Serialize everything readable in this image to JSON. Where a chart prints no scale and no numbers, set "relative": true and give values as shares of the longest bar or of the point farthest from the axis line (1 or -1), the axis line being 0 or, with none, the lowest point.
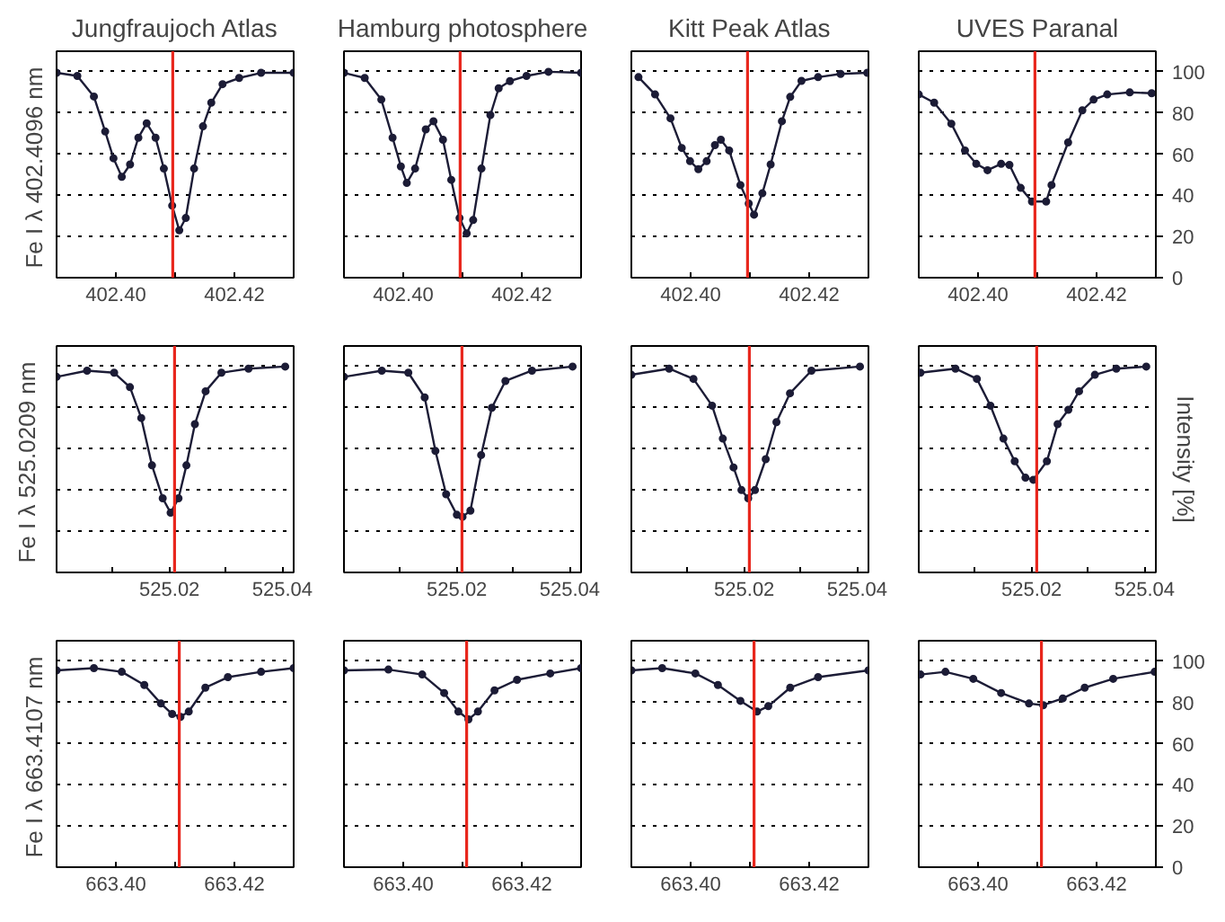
{
  "chart_data": [
    {
      "type": "line",
      "title": "Jungfraujoch Atlas",
      "ylabel": "Fe I  λ 402.4096 nm",
      "marker": "circle",
      "grid": "y",
      "tick_labels": "x",
      "xlim": [
        402.39,
        402.43
      ],
      "ylim": [
        0,
        110
      ],
      "xticks": [
        {
          "value": 402.39,
          "label": null
        },
        {
          "value": 402.4,
          "label": "402.40"
        },
        {
          "value": 402.41,
          "label": null
        },
        {
          "value": 402.42,
          "label": "402.42"
        },
        {
          "value": 402.43,
          "label": null
        }
      ],
      "yticks": [
        0,
        20,
        40,
        60,
        80,
        100
      ],
      "ref_lines": [
        {
          "axis": "x",
          "value": 402.4096,
          "color": "#e8261c"
        }
      ],
      "series": [
        {
          "color": "#1c1c36",
          "x": [
            402.39,
            402.3935,
            402.3963,
            402.3982,
            402.3996,
            402.401,
            402.4024,
            402.4038,
            402.4052,
            402.4067,
            402.4081,
            402.4095,
            402.4107,
            402.4118,
            402.4132,
            402.4147,
            402.4161,
            402.418,
            402.4208,
            402.4245,
            402.43
          ],
          "values": [
            99.5,
            98,
            88,
            71,
            58,
            49,
            55,
            68,
            75,
            68,
            53,
            35,
            23,
            29,
            53,
            73.5,
            85,
            94,
            97,
            99.5,
            99.5
          ]
        }
      ]
    },
    {
      "type": "line",
      "title": "Hamburg photosphere",
      "marker": "circle",
      "grid": "y",
      "tick_labels": "x",
      "xlim": [
        402.39,
        402.43
      ],
      "ylim": [
        0,
        110
      ],
      "xticks": [
        {
          "value": 402.39,
          "label": null
        },
        {
          "value": 402.4,
          "label": "402.40"
        },
        {
          "value": 402.41,
          "label": null
        },
        {
          "value": 402.42,
          "label": "402.42"
        },
        {
          "value": 402.43,
          "label": null
        }
      ],
      "yticks": [
        0,
        20,
        40,
        60,
        80,
        100
      ],
      "ref_lines": [
        {
          "axis": "x",
          "value": 402.4096,
          "color": "#e8261c"
        }
      ],
      "series": [
        {
          "color": "#1c1c36",
          "x": [
            402.39,
            402.3935,
            402.3963,
            402.3982,
            402.3996,
            402.4006,
            402.402,
            402.4038,
            402.4051,
            402.4067,
            402.4081,
            402.4095,
            402.4107,
            402.4118,
            402.4132,
            402.4147,
            402.4161,
            402.418,
            402.4208,
            402.4245,
            402.43
          ],
          "values": [
            99.5,
            97,
            86.5,
            68,
            54,
            46,
            53,
            72,
            76,
            67,
            47.5,
            29,
            21.5,
            28,
            53,
            79,
            92,
            95.5,
            98,
            100,
            99.5
          ]
        }
      ]
    },
    {
      "type": "line",
      "title": "Kitt Peak Atlas",
      "marker": "circle",
      "grid": "y",
      "tick_labels": "x",
      "xlim": [
        402.39,
        402.43
      ],
      "ylim": [
        0,
        110
      ],
      "xticks": [
        {
          "value": 402.39,
          "label": null
        },
        {
          "value": 402.4,
          "label": "402.40"
        },
        {
          "value": 402.41,
          "label": null
        },
        {
          "value": 402.42,
          "label": "402.42"
        },
        {
          "value": 402.43,
          "label": null
        }
      ],
      "yticks": [
        0,
        20,
        40,
        60,
        80,
        100
      ],
      "ref_lines": [
        {
          "axis": "x",
          "value": 402.4096,
          "color": "#e8261c"
        }
      ],
      "series": [
        {
          "color": "#1c1c36",
          "x": [
            402.3912,
            402.394,
            402.3966,
            402.3985,
            402.3999,
            402.4013,
            402.4027,
            402.4041,
            402.4051,
            402.4065,
            402.4084,
            402.4098,
            402.4107,
            402.4121,
            402.4135,
            402.4154,
            402.4168,
            402.4187,
            402.4215,
            402.4253,
            402.4298
          ],
          "values": [
            97.4,
            89,
            77.4,
            63,
            56.6,
            52.7,
            56.6,
            64.4,
            67,
            61.8,
            45,
            36,
            30.6,
            41,
            55,
            76,
            87.8,
            95.6,
            97.4,
            99,
            99.5
          ]
        }
      ]
    },
    {
      "type": "line",
      "title": "UVES Paranal",
      "marker": "circle",
      "grid": "y",
      "xlim": [
        402.39,
        402.43
      ],
      "ylim": [
        0,
        110
      ],
      "xticks": [
        {
          "value": 402.39,
          "label": null
        },
        {
          "value": 402.4,
          "label": "402.40"
        },
        {
          "value": 402.41,
          "label": null
        },
        {
          "value": 402.42,
          "label": "402.42"
        },
        {
          "value": 402.43,
          "label": null
        }
      ],
      "yticks": [
        0,
        20,
        40,
        60,
        80,
        100
      ],
      "ref_lines": [
        {
          "axis": "x",
          "value": 402.4096,
          "color": "#e8261c"
        }
      ],
      "series": [
        {
          "color": "#1c1c36",
          "x": [
            402.39,
            402.3926,
            402.3955,
            402.3978,
            402.3997,
            402.4016,
            402.4039,
            402.4053,
            402.4072,
            402.4091,
            402.4115,
            402.4124,
            402.4152,
            402.4176,
            402.4195,
            402.4218,
            402.4256,
            402.4293
          ],
          "values": [
            89,
            85,
            74.8,
            61.8,
            55.3,
            52.2,
            55.3,
            54.8,
            43.6,
            37,
            37,
            45,
            65.7,
            81.3,
            86.5,
            89,
            90,
            89.6
          ]
        }
      ]
    },
    {
      "type": "line",
      "relative": true,
      "ylabel": "Fe I  λ 525.0209 nm",
      "marker": "circle",
      "grid": "y",
      "tick_labels": "x",
      "xlim": [
        525.0,
        525.042
      ],
      "xticks": [
        {
          "value": 525.01,
          "label": null
        },
        {
          "value": 525.02,
          "label": "525.02"
        },
        {
          "value": 525.03,
          "label": null
        },
        {
          "value": 525.04,
          "label": "525.04"
        }
      ],
      "ref_lines": [
        {
          "axis": "x",
          "value": 525.0209,
          "color": "#e8261c"
        }
      ],
      "series": [
        {
          "color": "#1c1c36",
          "x": [
            525.0,
            525.0054,
            525.0102,
            525.013,
            525.015,
            525.0169,
            525.0188,
            525.0202,
            525.0216,
            525.023,
            525.0245,
            525.0264,
            525.0292,
            525.034,
            525.0405
          ],
          "values": [
            0.95,
            0.98,
            0.97,
            0.9,
            0.75,
            0.52,
            0.36,
            0.29,
            0.36,
            0.52,
            0.72,
            0.88,
            0.97,
            0.99,
            1
          ]
        }
      ]
    },
    {
      "type": "line",
      "relative": true,
      "marker": "circle",
      "grid": "y",
      "tick_labels": "x",
      "xlim": [
        525.0,
        525.042
      ],
      "xticks": [
        {
          "value": 525.01,
          "label": null
        },
        {
          "value": 525.02,
          "label": "525.02"
        },
        {
          "value": 525.03,
          "label": null
        },
        {
          "value": 525.04,
          "label": "525.04"
        }
      ],
      "ref_lines": [
        {
          "axis": "x",
          "value": 525.0209,
          "color": "#e8261c"
        }
      ],
      "series": [
        {
          "color": "#1c1c36",
          "x": [
            525.0,
            525.0067,
            525.0114,
            525.0143,
            525.0162,
            525.0181,
            525.02,
            525.021,
            525.0224,
            525.0243,
            525.0262,
            525.0286,
            525.0333,
            525.0405
          ],
          "values": [
            0.95,
            0.98,
            0.97,
            0.85,
            0.59,
            0.38,
            0.28,
            0.27,
            0.3,
            0.57,
            0.8,
            0.93,
            0.98,
            1
          ]
        }
      ]
    },
    {
      "type": "line",
      "relative": true,
      "marker": "circle",
      "grid": "y",
      "tick_labels": "x",
      "xlim": [
        525.0,
        525.042
      ],
      "xticks": [
        {
          "value": 525.01,
          "label": null
        },
        {
          "value": 525.02,
          "label": "525.02"
        },
        {
          "value": 525.03,
          "label": null
        },
        {
          "value": 525.04,
          "label": "525.04"
        }
      ],
      "ref_lines": [
        {
          "axis": "x",
          "value": 525.0209,
          "color": "#e8261c"
        }
      ],
      "series": [
        {
          "color": "#1c1c36",
          "x": [
            525.0,
            525.0067,
            525.011,
            525.0143,
            525.0162,
            525.0181,
            525.0195,
            525.0207,
            525.0219,
            525.0238,
            525.0257,
            525.0281,
            525.0319,
            525.0405
          ],
          "values": [
            0.96,
            0.99,
            0.94,
            0.81,
            0.65,
            0.51,
            0.4,
            0.36,
            0.4,
            0.55,
            0.73,
            0.87,
            0.98,
            1
          ]
        }
      ]
    },
    {
      "type": "line",
      "relative": true,
      "ylabel": "Intensity [%]",
      "marker": "circle",
      "grid": "y",
      "tick_labels": "x",
      "xlim": [
        525.0,
        525.042
      ],
      "xticks": [
        {
          "value": 525.01,
          "label": null
        },
        {
          "value": 525.02,
          "label": "525.02"
        },
        {
          "value": 525.03,
          "label": null
        },
        {
          "value": 525.04,
          "label": "525.04"
        }
      ],
      "ref_lines": [
        {
          "axis": "x",
          "value": 525.0209,
          "color": "#e8261c"
        }
      ],
      "series": [
        {
          "color": "#1c1c36",
          "x": [
            525.0003,
            525.0065,
            525.0103,
            525.0127,
            525.015,
            525.017,
            525.0189,
            525.0203,
            525.0227,
            525.0246,
            525.0265,
            525.0284,
            525.0312,
            525.035,
            525.0403
          ],
          "values": [
            0.97,
            0.99,
            0.94,
            0.81,
            0.65,
            0.54,
            0.46,
            0.45,
            0.54,
            0.72,
            0.79,
            0.88,
            0.96,
            0.99,
            1
          ]
        }
      ]
    },
    {
      "type": "line",
      "ylabel": "Fe I  λ 663.4107 nm",
      "marker": "circle",
      "grid": "y",
      "tick_labels": "x",
      "xlim": [
        663.39,
        663.43
      ],
      "ylim": [
        0,
        110
      ],
      "xticks": [
        {
          "value": 663.39,
          "label": null
        },
        {
          "value": 663.4,
          "label": "663.40"
        },
        {
          "value": 663.41,
          "label": null
        },
        {
          "value": 663.42,
          "label": "663.42"
        },
        {
          "value": 663.43,
          "label": null
        }
      ],
      "yticks": [
        0,
        20,
        40,
        60,
        80,
        100
      ],
      "ref_lines": [
        {
          "axis": "x",
          "value": 663.4107,
          "color": "#e8261c"
        }
      ],
      "series": [
        {
          "color": "#1c1c36",
          "x": [
            663.39,
            663.3963,
            663.401,
            663.4048,
            663.4076,
            663.4095,
            663.4109,
            663.4123,
            663.4151,
            663.4189,
            663.4245,
            663.43
          ],
          "values": [
            95.6,
            96.7,
            94.9,
            88.5,
            79.5,
            74.4,
            73,
            75.6,
            87.2,
            92.3,
            94.9,
            96.7
          ]
        }
      ]
    },
    {
      "type": "line",
      "marker": "circle",
      "grid": "y",
      "tick_labels": "x",
      "xlim": [
        663.39,
        663.43
      ],
      "ylim": [
        0,
        110
      ],
      "xticks": [
        {
          "value": 663.39,
          "label": null
        },
        {
          "value": 663.4,
          "label": "663.40"
        },
        {
          "value": 663.41,
          "label": null
        },
        {
          "value": 663.42,
          "label": "663.42"
        },
        {
          "value": 663.43,
          "label": null
        }
      ],
      "yticks": [
        0,
        20,
        40,
        60,
        80,
        100
      ],
      "ref_lines": [
        {
          "axis": "x",
          "value": 663.4107,
          "color": "#e8261c"
        }
      ],
      "series": [
        {
          "color": "#1c1c36",
          "x": [
            663.39,
            663.3975,
            663.4032,
            663.4069,
            663.4093,
            663.411,
            663.4126,
            663.4154,
            663.4192,
            663.4248,
            663.43
          ],
          "values": [
            95.6,
            96,
            93.6,
            84.6,
            75.6,
            71.8,
            75.6,
            85.9,
            91,
            94.1,
            96.7
          ]
        }
      ]
    },
    {
      "type": "line",
      "marker": "circle",
      "grid": "y",
      "tick_labels": "x",
      "xlim": [
        663.39,
        663.43
      ],
      "ylim": [
        0,
        110
      ],
      "xticks": [
        {
          "value": 663.39,
          "label": null
        },
        {
          "value": 663.4,
          "label": "663.40"
        },
        {
          "value": 663.41,
          "label": null
        },
        {
          "value": 663.42,
          "label": "663.42"
        },
        {
          "value": 663.43,
          "label": null
        }
      ],
      "yticks": [
        0,
        20,
        40,
        60,
        80,
        100
      ],
      "ref_lines": [
        {
          "axis": "x",
          "value": 663.4107,
          "color": "#e8261c"
        }
      ],
      "series": [
        {
          "color": "#1c1c36",
          "x": [
            663.39,
            663.3952,
            663.4008,
            663.4046,
            663.4084,
            663.4112,
            663.4131,
            663.4168,
            663.4215,
            663.43
          ],
          "values": [
            95.6,
            96.7,
            94.1,
            88.5,
            80.8,
            75.6,
            78.2,
            87.2,
            92.3,
            95.6
          ]
        }
      ]
    },
    {
      "type": "line",
      "marker": "circle",
      "grid": "y",
      "xlim": [
        663.39,
        663.43
      ],
      "ylim": [
        0,
        110
      ],
      "xticks": [
        {
          "value": 663.39,
          "label": null
        },
        {
          "value": 663.4,
          "label": "663.40"
        },
        {
          "value": 663.41,
          "label": null
        },
        {
          "value": 663.42,
          "label": "663.42"
        },
        {
          "value": 663.43,
          "label": null
        }
      ],
      "yticks": [
        0,
        20,
        40,
        60,
        80,
        100
      ],
      "ref_lines": [
        {
          "axis": "x",
          "value": 663.4107,
          "color": "#e8261c"
        }
      ],
      "series": [
        {
          "color": "#1c1c36",
          "x": [
            663.3903,
            663.3945,
            663.3992,
            663.4039,
            663.4086,
            663.411,
            663.4143,
            663.418,
            663.4228,
            663.4298
          ],
          "values": [
            93.6,
            94.9,
            91.5,
            84.6,
            79.5,
            78.7,
            82,
            87.2,
            91.5,
            94.9
          ]
        }
      ]
    }
  ]
}
